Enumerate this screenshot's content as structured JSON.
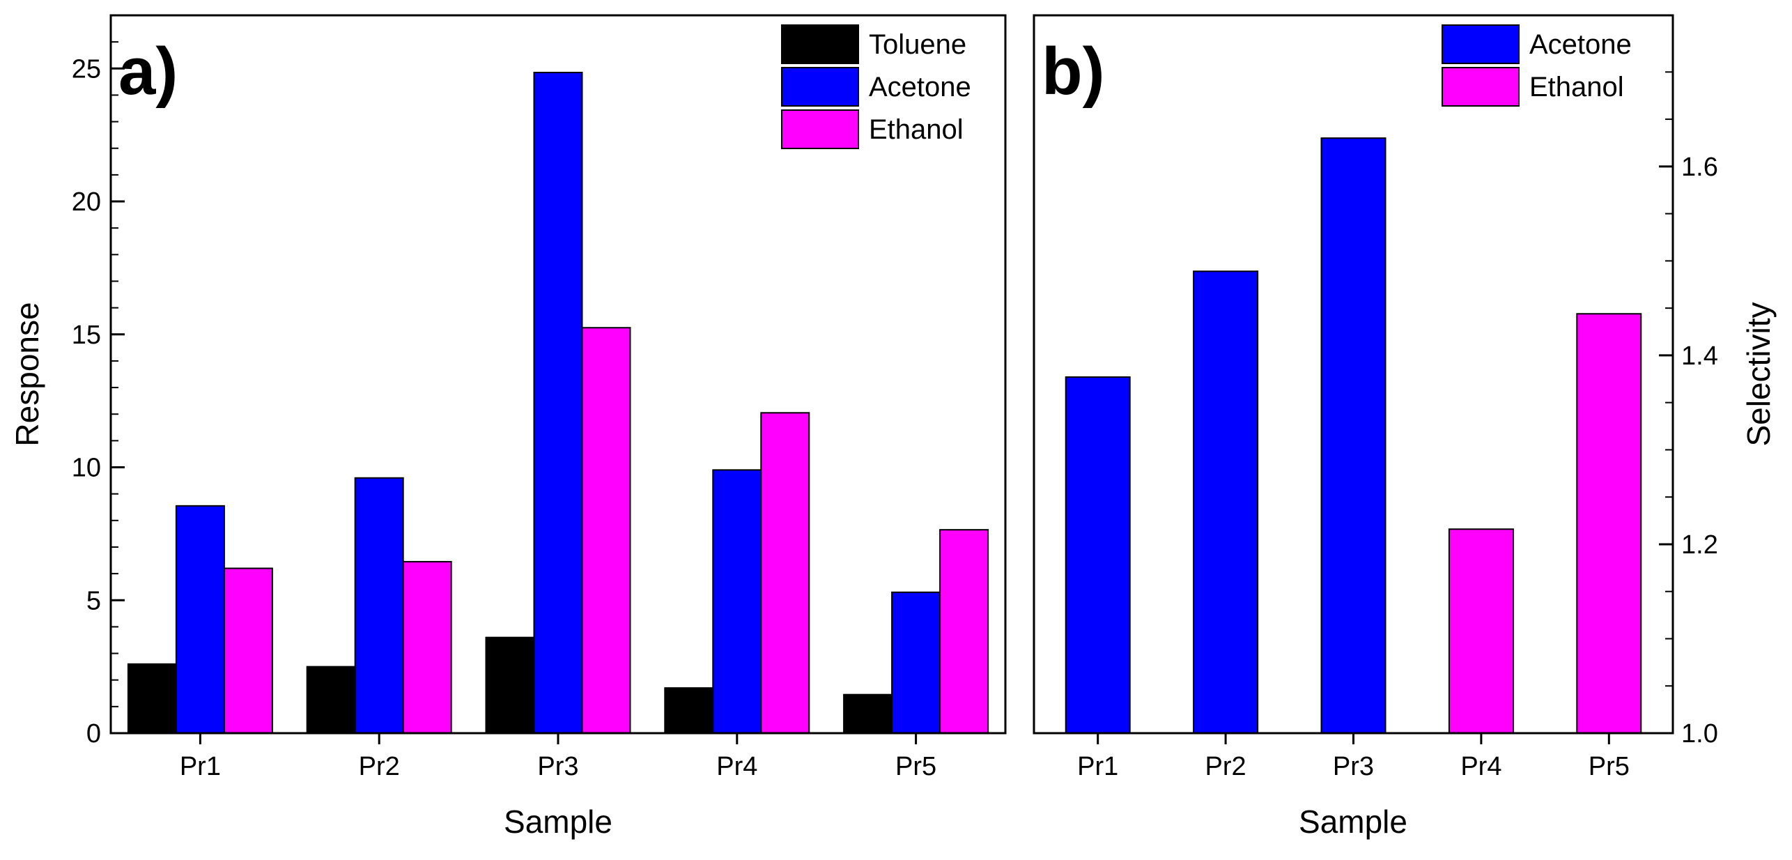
{
  "chart_data": [
    {
      "panel_label": "a)",
      "type": "bar",
      "xlabel": "Sample",
      "ylabel": "Response",
      "ylim": [
        0,
        27
      ],
      "yticks": [
        0,
        5,
        10,
        15,
        20,
        25
      ],
      "ytick_labels": [
        "0",
        "5",
        "10",
        "15",
        "20",
        "25"
      ],
      "categories": [
        "Pr1",
        "Pr2",
        "Pr3",
        "Pr4",
        "Pr5"
      ],
      "legend_position": "top-right",
      "series": [
        {
          "name": "Toluene",
          "color": "#000000",
          "values": [
            2.6,
            2.5,
            3.6,
            1.7,
            1.45
          ]
        },
        {
          "name": "Acetone",
          "color": "#0000ff",
          "values": [
            8.55,
            9.6,
            24.85,
            9.9,
            5.3
          ]
        },
        {
          "name": "Ethanol",
          "color": "#ff00ff",
          "values": [
            6.2,
            6.45,
            15.25,
            12.05,
            7.65
          ]
        }
      ]
    },
    {
      "panel_label": "b)",
      "type": "bar",
      "xlabel": "Sample",
      "ylabel": "Selectivity",
      "ylim": [
        1.0,
        1.76
      ],
      "yticks": [
        1.0,
        1.2,
        1.4,
        1.6
      ],
      "ytick_labels": [
        "1.0",
        "1.2",
        "1.4",
        "1.6"
      ],
      "y_axis_side": "right",
      "categories": [
        "Pr1",
        "Pr2",
        "Pr3",
        "Pr4",
        "Pr5"
      ],
      "legend_position": "top-right",
      "legend": [
        {
          "name": "Acetone",
          "color": "#0000ff"
        },
        {
          "name": "Ethanol",
          "color": "#ff00ff"
        }
      ],
      "bars": [
        {
          "category": "Pr1",
          "value": 1.377,
          "series": "Acetone",
          "color": "#0000ff"
        },
        {
          "category": "Pr2",
          "value": 1.489,
          "series": "Acetone",
          "color": "#0000ff"
        },
        {
          "category": "Pr3",
          "value": 1.63,
          "series": "Acetone",
          "color": "#0000ff"
        },
        {
          "category": "Pr4",
          "value": 1.216,
          "series": "Ethanol",
          "color": "#ff00ff"
        },
        {
          "category": "Pr5",
          "value": 1.444,
          "series": "Ethanol",
          "color": "#ff00ff"
        }
      ]
    }
  ]
}
